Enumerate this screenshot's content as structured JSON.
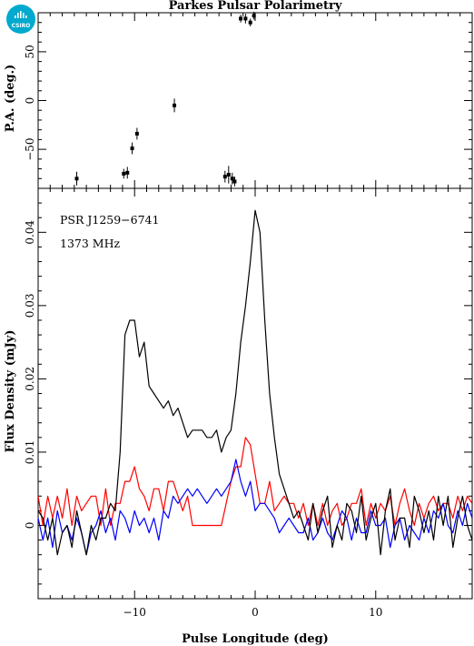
{
  "logo": {
    "text": "CSIRO",
    "color": "#00a9ce"
  },
  "chart_data": [
    {
      "type": "scatter",
      "title": "Parkes Pulsar Polarimetry",
      "xlabel": "",
      "ylabel": "P.A. (deg.)",
      "xlim": [
        -18,
        18
      ],
      "ylim": [
        -90,
        90
      ],
      "yticks": [
        -50,
        0,
        50
      ],
      "yticklabels": [
        "−50",
        "0",
        "50"
      ],
      "grid": false,
      "points": [
        {
          "x": -14.8,
          "y": -80,
          "err": 7
        },
        {
          "x": -10.9,
          "y": -75,
          "err": 5
        },
        {
          "x": -10.6,
          "y": -74,
          "err": 6
        },
        {
          "x": -10.2,
          "y": -49,
          "err": 6
        },
        {
          "x": -9.8,
          "y": -34,
          "err": 6
        },
        {
          "x": -6.7,
          "y": -5,
          "err": 7
        },
        {
          "x": -2.5,
          "y": -78,
          "err": 6
        },
        {
          "x": -2.2,
          "y": -76,
          "err": 9
        },
        {
          "x": -1.9,
          "y": -80,
          "err": 6
        },
        {
          "x": -1.7,
          "y": -83,
          "err": 5
        },
        {
          "x": -1.2,
          "y": 84,
          "err": 4
        },
        {
          "x": -0.8,
          "y": 84,
          "err": 5
        },
        {
          "x": -0.4,
          "y": 80,
          "err": 4
        },
        {
          "x": -0.1,
          "y": 87,
          "err": 4
        }
      ]
    },
    {
      "type": "line",
      "xlabel": "Pulse Longitude (deg)",
      "ylabel": "Flux Density (mJy)",
      "xlim": [
        -18,
        18
      ],
      "ylim": [
        -0.01,
        0.046
      ],
      "xticks": [
        -10,
        0,
        10
      ],
      "xticklabels": [
        "−10",
        "0",
        "10"
      ],
      "yticks": [
        0,
        0.01,
        0.02,
        0.03,
        0.04
      ],
      "yticklabels": [
        "0",
        "0.01",
        "0.02",
        "0.03",
        "0.04"
      ],
      "annotations": [
        "PSR J1259−6741",
        "1373 MHz"
      ],
      "grid": false,
      "series": [
        {
          "color": "#000000",
          "x": [
            -18,
            -17.6,
            -17.2,
            -16.8,
            -16.4,
            -16,
            -15.6,
            -15.2,
            -14.8,
            -14.4,
            -14,
            -13.6,
            -13.2,
            -12.8,
            -12.4,
            -12,
            -11.6,
            -11.2,
            -10.8,
            -10.4,
            -10,
            -9.6,
            -9.2,
            -8.8,
            -8.4,
            -8,
            -7.6,
            -7.2,
            -6.8,
            -6.4,
            -6,
            -5.6,
            -5.2,
            -4.8,
            -4.4,
            -4,
            -3.6,
            -3.2,
            -2.8,
            -2.4,
            -2,
            -1.6,
            -1.2,
            -0.8,
            -0.4,
            0,
            0.4,
            0.8,
            1.2,
            1.6,
            2,
            2.4,
            2.8,
            3.2,
            3.6,
            4,
            4.4,
            4.8,
            5.2,
            5.6,
            6,
            6.4,
            6.8,
            7.2,
            7.6,
            8,
            8.4,
            8.8,
            9.2,
            9.6,
            10,
            10.4,
            10.8,
            11.2,
            11.6,
            12,
            12.4,
            12.8,
            13.2,
            13.6,
            14,
            14.4,
            14.8,
            15.2,
            15.6,
            16,
            16.4,
            16.8,
            17.2,
            17.6,
            18
          ],
          "y": [
            0.002,
            0.001,
            -0.002,
            0.001,
            -0.004,
            -0.001,
            0,
            -0.003,
            0.002,
            -0.001,
            -0.004,
            0,
            -0.002,
            0.001,
            0.001,
            0.003,
            0.002,
            0.01,
            0.026,
            0.028,
            0.028,
            0.023,
            0.025,
            0.019,
            0.018,
            0.017,
            0.016,
            0.017,
            0.015,
            0.016,
            0.014,
            0.012,
            0.013,
            0.013,
            0.013,
            0.012,
            0.012,
            0.013,
            0.01,
            0.012,
            0.013,
            0.018,
            0.025,
            0.03,
            0.036,
            0.043,
            0.04,
            0.028,
            0.018,
            0.012,
            0.007,
            0.005,
            0.003,
            0.001,
            0.002,
            0,
            -0.002,
            0.003,
            -0.001,
            0.002,
            0.004,
            -0.003,
            0,
            -0.002,
            0.003,
            0.002,
            -0.001,
            0.004,
            -0.002,
            0.001,
            0.003,
            -0.004,
            0.002,
            0.005,
            -0.002,
            0.001,
            0.001,
            -0.003,
            0.004,
            0.002,
            -0.001,
            0.002,
            -0.002,
            0.004,
            0,
            0.004,
            -0.003,
            0.001,
            0.004,
            0,
            -0.002
          ]
        },
        {
          "color": "#ff0000",
          "x": [
            -18,
            -17.6,
            -17.2,
            -16.8,
            -16.4,
            -16,
            -15.6,
            -15.2,
            -14.8,
            -14.4,
            -14,
            -13.6,
            -13.2,
            -12.8,
            -12.4,
            -12,
            -11.6,
            -11.2,
            -10.8,
            -10.4,
            -10,
            -9.6,
            -9.2,
            -8.8,
            -8.4,
            -8,
            -7.6,
            -7.2,
            -6.8,
            -6.4,
            -6,
            -5.6,
            -5.2,
            -4.8,
            -4.4,
            -4,
            -3.6,
            -3.2,
            -2.8,
            -2.4,
            -2,
            -1.6,
            -1.2,
            -0.8,
            -0.4,
            0,
            0.4,
            0.8,
            1.2,
            1.6,
            2,
            2.4,
            2.8,
            3.2,
            3.6,
            4,
            4.4,
            4.8,
            5.2,
            5.6,
            6,
            6.4,
            6.8,
            7.2,
            7.6,
            8,
            8.4,
            8.8,
            9.2,
            9.6,
            10,
            10.4,
            10.8,
            11.2,
            11.6,
            12,
            12.4,
            12.8,
            13.2,
            13.6,
            14,
            14.4,
            14.8,
            15.2,
            15.6,
            16,
            16.4,
            16.8,
            17.2,
            17.6,
            18
          ],
          "y": [
            0.004,
            0,
            0.004,
            0.001,
            0.004,
            0.001,
            0.005,
            0,
            0.004,
            0.002,
            0.003,
            0.004,
            0.004,
            0,
            0.005,
            0,
            0.003,
            0.003,
            0.006,
            0.006,
            0.008,
            0.005,
            0.004,
            0.002,
            0.005,
            0.005,
            0.002,
            0.006,
            0.006,
            0.004,
            0.002,
            0.004,
            0,
            0,
            0,
            0,
            0,
            0,
            0,
            0.003,
            0.006,
            0.008,
            0.008,
            0.012,
            0.011,
            0.007,
            0.003,
            0.003,
            0.006,
            0.002,
            0.003,
            0.004,
            0.003,
            0.003,
            0.001,
            0.003,
            0,
            0.003,
            0,
            0.003,
            0,
            0.002,
            0.003,
            0,
            0.001,
            0.003,
            0.003,
            0.005,
            0,
            0.003,
            0.001,
            0.003,
            0.002,
            0.004,
            0,
            0.003,
            0.005,
            0.002,
            0,
            0.003,
            0.001,
            0.003,
            0.004,
            0.002,
            0.003,
            0.003,
            0.001,
            0.004,
            0.002,
            0.004,
            0.003
          ]
        },
        {
          "color": "#0000ff",
          "x": [
            -18,
            -17.6,
            -17.2,
            -16.8,
            -16.4,
            -16,
            -15.6,
            -15.2,
            -14.8,
            -14.4,
            -14,
            -13.6,
            -13.2,
            -12.8,
            -12.4,
            -12,
            -11.6,
            -11.2,
            -10.8,
            -10.4,
            -10,
            -9.6,
            -9.2,
            -8.8,
            -8.4,
            -8,
            -7.6,
            -7.2,
            -6.8,
            -6.4,
            -6,
            -5.6,
            -5.2,
            -4.8,
            -4.4,
            -4,
            -3.6,
            -3.2,
            -2.8,
            -2.4,
            -2,
            -1.6,
            -1.2,
            -0.8,
            -0.4,
            0,
            0.4,
            0.8,
            1.2,
            1.6,
            2,
            2.4,
            2.8,
            3.2,
            3.6,
            4,
            4.4,
            4.8,
            5.2,
            5.6,
            6,
            6.4,
            6.8,
            7.2,
            7.6,
            8,
            8.4,
            8.8,
            9.2,
            9.6,
            10,
            10.4,
            10.8,
            11.2,
            11.6,
            12,
            12.4,
            12.8,
            13.2,
            13.6,
            14,
            14.4,
            14.8,
            15.2,
            15.6,
            16,
            16.4,
            16.8,
            17.2,
            17.6,
            18
          ],
          "y": [
            0.001,
            -0.002,
            0.001,
            -0.003,
            0.002,
            -0.001,
            0,
            -0.002,
            0.001,
            -0.001,
            -0.004,
            -0.001,
            0,
            0.002,
            -0.001,
            0.001,
            -0.002,
            0.002,
            0.001,
            -0.001,
            0.002,
            0,
            0.001,
            -0.001,
            0.001,
            -0.002,
            0.002,
            0.001,
            0.004,
            0.003,
            0.004,
            0.005,
            0.004,
            0.005,
            0.004,
            0.003,
            0.004,
            0.005,
            0.004,
            0.005,
            0.006,
            0.009,
            0.006,
            0.004,
            0.006,
            0.002,
            0.003,
            0.003,
            0.002,
            0.001,
            -0.001,
            0,
            0.001,
            0,
            -0.001,
            -0.001,
            0.001,
            -0.002,
            -0.001,
            0.001,
            -0.001,
            -0.002,
            0,
            0.002,
            0.001,
            -0.002,
            0.001,
            -0.001,
            -0.001,
            0.002,
            0,
            0,
            0.001,
            -0.003,
            0,
            0.001,
            -0.002,
            0,
            -0.001,
            -0.002,
            0.001,
            -0.001,
            0.002,
            0.001,
            0.003,
            0,
            -0.001,
            0.002,
            0,
            0.003,
            0.001
          ]
        }
      ]
    }
  ]
}
